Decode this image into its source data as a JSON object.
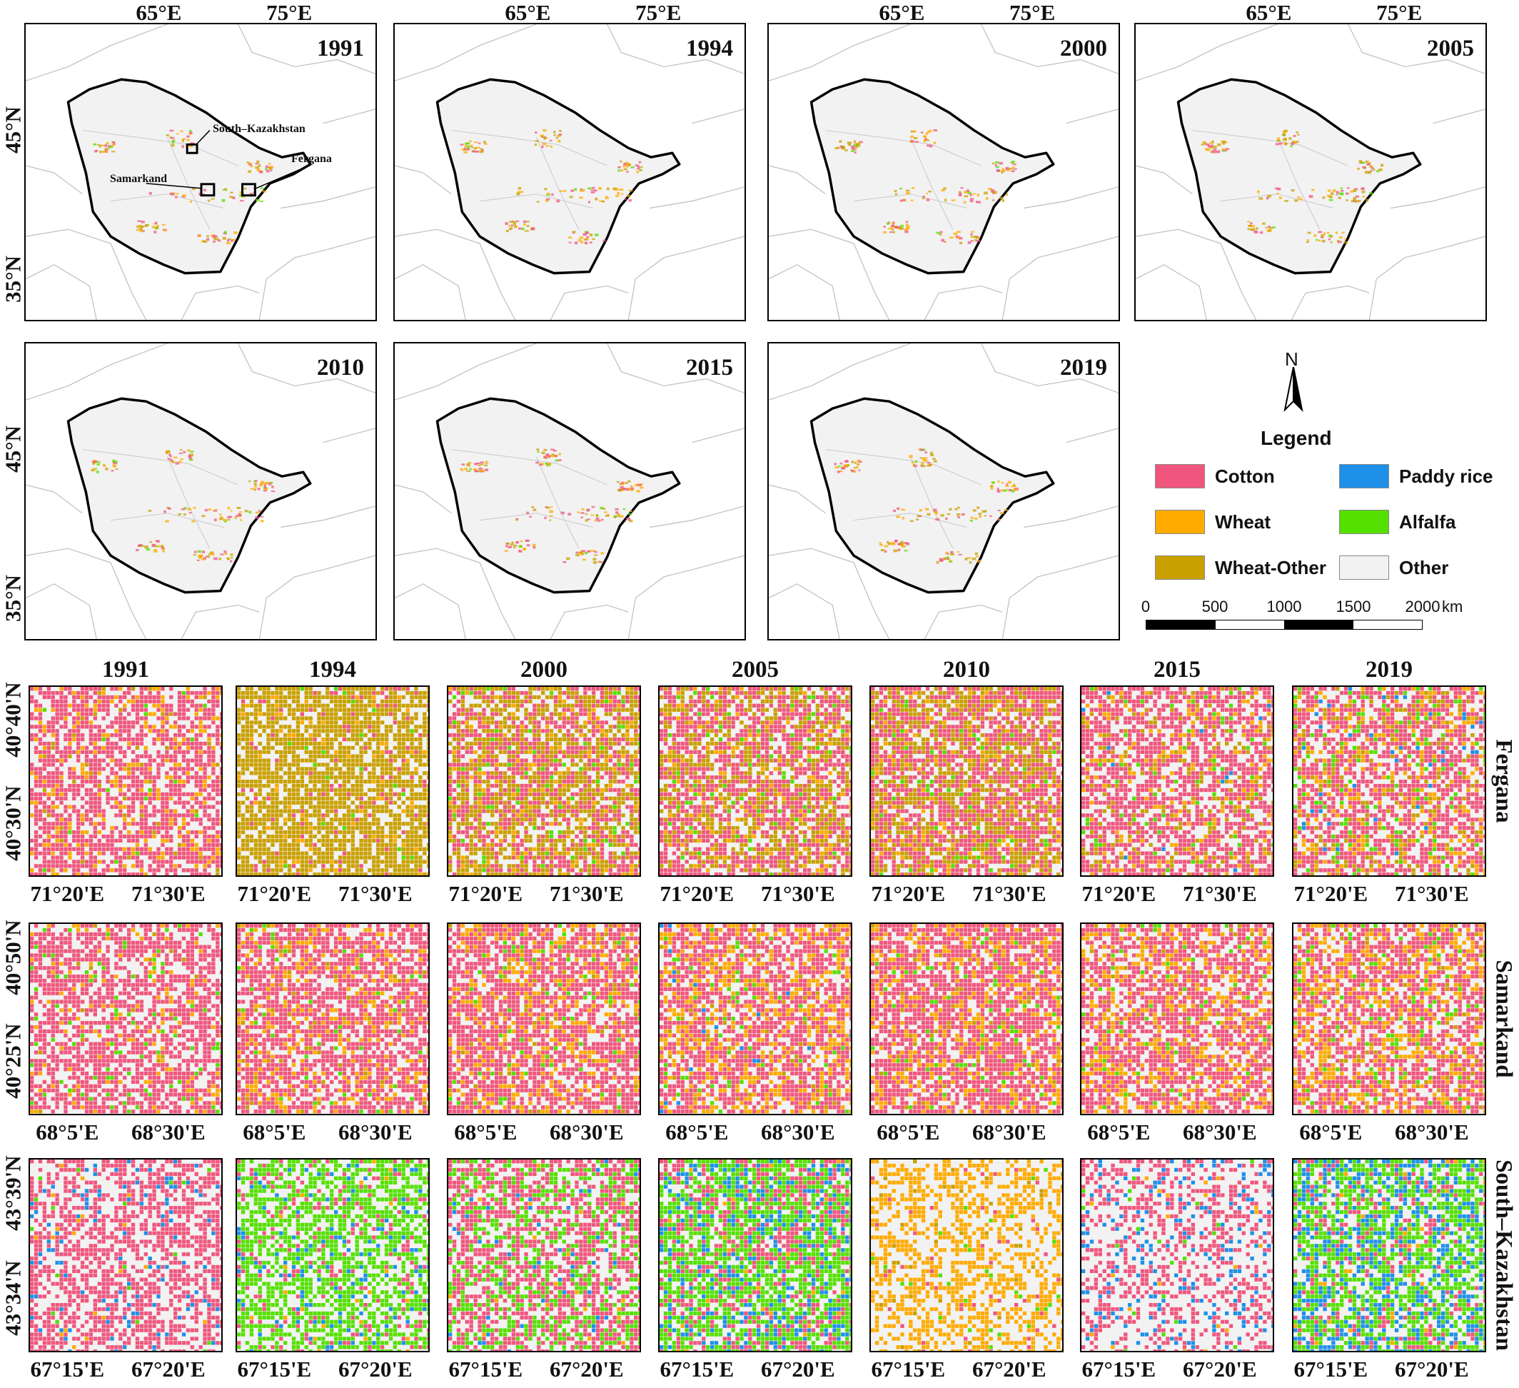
{
  "colors": {
    "cotton": "#f0567d",
    "wheat": "#ffab00",
    "wheat_other": "#c9a000",
    "paddy_rice": "#1e90e8",
    "alfalfa": "#55e000",
    "other": "#f2f2f2"
  },
  "overview": {
    "years": [
      "1991",
      "1994",
      "2000",
      "2005",
      "2010",
      "2015",
      "2019"
    ],
    "lon_labels": [
      "65°E",
      "75°E"
    ],
    "lat_labels": [
      "45°N",
      "35°N"
    ],
    "inset_labels": [
      "South–Kazakhstan",
      "Fergana",
      "Samarkand"
    ]
  },
  "legend": {
    "north": "N",
    "title": "Legend",
    "items": [
      {
        "label": "Cotton",
        "key": "cotton"
      },
      {
        "label": "Paddy rice",
        "key": "paddy_rice"
      },
      {
        "label": "Wheat",
        "key": "wheat"
      },
      {
        "label": "Alfalfa",
        "key": "alfalfa"
      },
      {
        "label": "Wheat-Other",
        "key": "wheat_other"
      },
      {
        "label": "Other",
        "key": "other"
      }
    ],
    "scalebar": [
      "0",
      "500",
      "1000",
      "1500",
      "2000"
    ],
    "scalebar_unit": "km"
  },
  "detail": {
    "years": [
      "1991",
      "1994",
      "2000",
      "2005",
      "2010",
      "2015",
      "2019"
    ],
    "regions": [
      {
        "name": "Fergana",
        "lat_labels": [
          "40°40'N",
          "40°30'N"
        ],
        "lon_labels": [
          "71°20'E",
          "71°30'E"
        ],
        "mix": [
          {
            "cotton": 0.55,
            "wheat": 0.12,
            "wheat_other": 0.02,
            "paddy_rice": 0.0,
            "alfalfa": 0.01,
            "other": 0.3
          },
          {
            "cotton": 0.04,
            "wheat": 0.04,
            "wheat_other": 0.68,
            "paddy_rice": 0.0,
            "alfalfa": 0.01,
            "other": 0.23
          },
          {
            "cotton": 0.32,
            "wheat": 0.06,
            "wheat_other": 0.35,
            "paddy_rice": 0.0,
            "alfalfa": 0.04,
            "other": 0.23
          },
          {
            "cotton": 0.42,
            "wheat": 0.08,
            "wheat_other": 0.25,
            "paddy_rice": 0.0,
            "alfalfa": 0.03,
            "other": 0.22
          },
          {
            "cotton": 0.45,
            "wheat": 0.05,
            "wheat_other": 0.3,
            "paddy_rice": 0.0,
            "alfalfa": 0.02,
            "other": 0.18
          },
          {
            "cotton": 0.5,
            "wheat": 0.08,
            "wheat_other": 0.08,
            "paddy_rice": 0.01,
            "alfalfa": 0.03,
            "other": 0.3
          },
          {
            "cotton": 0.45,
            "wheat": 0.1,
            "wheat_other": 0.08,
            "paddy_rice": 0.02,
            "alfalfa": 0.05,
            "other": 0.3
          }
        ]
      },
      {
        "name": "Samarkand",
        "lat_labels": [
          "40°50'N",
          "40°25'N"
        ],
        "lon_labels": [
          "68°5'E",
          "68°30'E"
        ],
        "mix": [
          {
            "cotton": 0.55,
            "wheat": 0.06,
            "wheat_other": 0.01,
            "paddy_rice": 0.0,
            "alfalfa": 0.04,
            "other": 0.34
          },
          {
            "cotton": 0.55,
            "wheat": 0.14,
            "wheat_other": 0.02,
            "paddy_rice": 0.0,
            "alfalfa": 0.02,
            "other": 0.27
          },
          {
            "cotton": 0.55,
            "wheat": 0.15,
            "wheat_other": 0.03,
            "paddy_rice": 0.0,
            "alfalfa": 0.03,
            "other": 0.24
          },
          {
            "cotton": 0.48,
            "wheat": 0.22,
            "wheat_other": 0.03,
            "paddy_rice": 0.01,
            "alfalfa": 0.03,
            "other": 0.23
          },
          {
            "cotton": 0.56,
            "wheat": 0.18,
            "wheat_other": 0.02,
            "paddy_rice": 0.0,
            "alfalfa": 0.04,
            "other": 0.2
          },
          {
            "cotton": 0.48,
            "wheat": 0.18,
            "wheat_other": 0.02,
            "paddy_rice": 0.0,
            "alfalfa": 0.03,
            "other": 0.29
          },
          {
            "cotton": 0.44,
            "wheat": 0.2,
            "wheat_other": 0.04,
            "paddy_rice": 0.0,
            "alfalfa": 0.04,
            "other": 0.28
          }
        ]
      },
      {
        "name": "South–Kazakhstan",
        "lat_labels": [
          "43°39'N",
          "43°34'N"
        ],
        "lon_labels": [
          "67°15'E",
          "67°20'E"
        ],
        "mix": [
          {
            "cotton": 0.5,
            "wheat": 0.01,
            "wheat_other": 0.0,
            "paddy_rice": 0.05,
            "alfalfa": 0.01,
            "other": 0.43
          },
          {
            "cotton": 0.1,
            "wheat": 0.01,
            "wheat_other": 0.0,
            "paddy_rice": 0.06,
            "alfalfa": 0.5,
            "other": 0.33
          },
          {
            "cotton": 0.42,
            "wheat": 0.01,
            "wheat_other": 0.0,
            "paddy_rice": 0.02,
            "alfalfa": 0.25,
            "other": 0.3
          },
          {
            "cotton": 0.22,
            "wheat": 0.01,
            "wheat_other": 0.0,
            "paddy_rice": 0.12,
            "alfalfa": 0.45,
            "other": 0.2
          },
          {
            "cotton": 0.02,
            "wheat": 0.42,
            "wheat_other": 0.02,
            "paddy_rice": 0.0,
            "alfalfa": 0.02,
            "other": 0.52
          },
          {
            "cotton": 0.3,
            "wheat": 0.01,
            "wheat_other": 0.0,
            "paddy_rice": 0.1,
            "alfalfa": 0.02,
            "other": 0.57
          },
          {
            "cotton": 0.12,
            "wheat": 0.01,
            "wheat_other": 0.0,
            "paddy_rice": 0.22,
            "alfalfa": 0.38,
            "other": 0.27
          }
        ]
      }
    ]
  }
}
